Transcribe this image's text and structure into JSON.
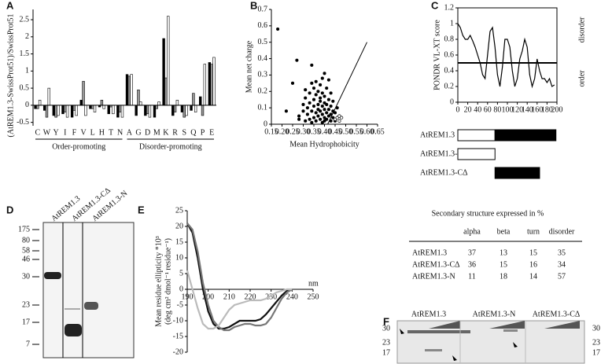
{
  "panel_labels": [
    "A",
    "B",
    "C",
    "D",
    "E",
    "F"
  ],
  "chart_data": [
    {
      "type": "bar",
      "ylabel": "(AtREM1.3-SwissProt51)/SwissProt51",
      "categories": [
        "C",
        "W",
        "Y",
        "I",
        "F",
        "V",
        "L",
        "H",
        "T",
        "N",
        "A",
        "G",
        "D",
        "M",
        "K",
        "R",
        "S",
        "Q",
        "P",
        "E"
      ],
      "group_labels": [
        "Order-promoting",
        "Disorder-promoting"
      ],
      "series": [
        {
          "color": "#000000",
          "values": [
            -0.1,
            -0.15,
            -0.3,
            -0.25,
            -0.35,
            0.15,
            -0.1,
            -0.05,
            -0.25,
            -0.35,
            0.9,
            -0.3,
            -0.3,
            -0.35,
            1.95,
            -0.3,
            -0.2,
            -0.15,
            0.25,
            1.25
          ]
        },
        {
          "color": "#999999",
          "values": [
            -0.1,
            -0.35,
            -0.35,
            -0.2,
            -0.15,
            0.7,
            -0.1,
            0.15,
            -0.05,
            -0.2,
            0.85,
            0.45,
            -0.25,
            -0.1,
            0.8,
            -0.2,
            -0.35,
            0.35,
            -0.3,
            1.2
          ]
        },
        {
          "color": "#ffffff",
          "values": [
            0.15,
            0.5,
            -0.3,
            -0.35,
            -0.3,
            -0.3,
            -0.2,
            -0.1,
            -0.25,
            -0.35,
            0.9,
            0.1,
            -0.35,
            0.1,
            2.6,
            0.15,
            -0.3,
            -0.2,
            1.2,
            1.4
          ]
        }
      ],
      "ylim": [
        -0.6,
        2.8
      ],
      "yticks": [
        -0.5,
        0,
        0.5,
        1,
        1.5,
        2,
        2.5
      ]
    },
    {
      "type": "scatter",
      "xlabel": "Mean Hydrophobicity",
      "ylabel": "Mean net charge",
      "series": [
        {
          "color": "#000000",
          "marker": "filled",
          "x": [
            0.18,
            0.22,
            0.25,
            0.27,
            0.28,
            0.28,
            0.3,
            0.3,
            0.31,
            0.31,
            0.32,
            0.32,
            0.33,
            0.33,
            0.33,
            0.34,
            0.34,
            0.34,
            0.35,
            0.35,
            0.35,
            0.35,
            0.36,
            0.36,
            0.36,
            0.36,
            0.37,
            0.37,
            0.37,
            0.37,
            0.38,
            0.38,
            0.38,
            0.38,
            0.38,
            0.39,
            0.39,
            0.39,
            0.39,
            0.39,
            0.4,
            0.4,
            0.4,
            0.4,
            0.4,
            0.4,
            0.41,
            0.41,
            0.41,
            0.41,
            0.42,
            0.42,
            0.42,
            0.42,
            0.43,
            0.43,
            0.43,
            0.43,
            0.44,
            0.44,
            0.44,
            0.45,
            0.45,
            0.46,
            0.34,
            0.31
          ],
          "y": [
            0.58,
            0.08,
            0.25,
            0.39,
            0.05,
            0.03,
            0.08,
            0.12,
            0.02,
            0.16,
            0.06,
            0.1,
            0.13,
            0.03,
            0.19,
            0.36,
            0.08,
            0.01,
            0.11,
            0.15,
            0.04,
            0.22,
            0.07,
            0.02,
            0.18,
            0.26,
            0.12,
            0.05,
            0.09,
            0.2,
            0.03,
            0.14,
            0.08,
            0.24,
            0.16,
            0.01,
            0.06,
            0.11,
            0.19,
            0.28,
            0.04,
            0.09,
            0.13,
            0.17,
            0.31,
            0.02,
            0.07,
            0.12,
            0.22,
            0.03,
            0.05,
            0.09,
            0.15,
            0.27,
            0.02,
            0.06,
            0.11,
            0.19,
            0.04,
            0.08,
            0.14,
            0.02,
            0.07,
            0.1,
            0.25,
            0.21
          ]
        },
        {
          "color": "#000000",
          "marker": "open",
          "x": [
            0.45,
            0.46,
            0.47,
            0.48,
            0.47
          ],
          "y": [
            0.03,
            0.04,
            0.05,
            0.04,
            0.02
          ]
        }
      ],
      "line": {
        "x": [
          0.415,
          0.6
        ],
        "y": [
          0,
          0.5
        ]
      },
      "xlim": [
        0.15,
        0.65
      ],
      "ylim": [
        0,
        0.7
      ],
      "xticks": [
        0.15,
        {
          "value": 0.2,
          "label": "0.20"
        },
        0.25,
        {
          "value": 0.3,
          "label": "0.30"
        },
        0.35,
        {
          "value": 0.4,
          "label": "0.40"
        },
        0.45,
        {
          "value": 0.5,
          "label": "0.50"
        },
        0.55,
        {
          "value": 0.6,
          "label": "0.60"
        },
        0.65
      ],
      "yticks": [
        0,
        0.1,
        0.2,
        0.3,
        0.4,
        0.5,
        0.6,
        0.7
      ]
    },
    {
      "type": "line",
      "ylabel": "PONDR VL-XT score",
      "side_labels": [
        "disorder",
        "order"
      ],
      "x": [
        0,
        5,
        10,
        15,
        20,
        25,
        30,
        35,
        40,
        45,
        50,
        55,
        60,
        65,
        70,
        75,
        80,
        85,
        90,
        95,
        100,
        105,
        110,
        115,
        120,
        125,
        130,
        135,
        140,
        145,
        150,
        155,
        160,
        165,
        170,
        175,
        180,
        185,
        190,
        195
      ],
      "series": [
        {
          "color": "#000000",
          "values": [
            1.0,
            0.95,
            0.85,
            0.8,
            0.8,
            0.85,
            0.78,
            0.7,
            0.6,
            0.5,
            0.35,
            0.3,
            0.6,
            0.9,
            0.95,
            0.7,
            0.35,
            0.2,
            0.45,
            0.8,
            0.8,
            0.7,
            0.4,
            0.2,
            0.3,
            0.55,
            0.65,
            0.8,
            0.7,
            0.35,
            0.2,
            0.3,
            0.55,
            0.4,
            0.3,
            0.3,
            0.25,
            0.3,
            0.2,
            0.22
          ]
        }
      ],
      "threshold": 0.5,
      "constructs": [
        {
          "name": "AtREM1.3",
          "segments": [
            {
              "start": 0,
              "end": 75,
              "color": "#ffffff"
            },
            {
              "start": 75,
              "end": 198,
              "color": "#000000"
            }
          ]
        },
        {
          "name": "AtREM1.3-N",
          "segments": [
            {
              "start": 0,
              "end": 75,
              "color": "#ffffff"
            }
          ]
        },
        {
          "name": "AtREM1.3-CΔ",
          "segments": [
            {
              "start": 75,
              "end": 165,
              "color": "#000000"
            }
          ]
        }
      ],
      "xlim": [
        0,
        200
      ],
      "ylim": [
        0,
        1.2
      ],
      "xticks": [
        0,
        20,
        40,
        60,
        80,
        100,
        120,
        140,
        160,
        180,
        200
      ],
      "yticks": [
        0,
        0.2,
        0.4,
        0.6,
        0.8,
        1,
        1.2
      ]
    },
    {
      "type": "line",
      "ylabel": "Mean residue ellipticity *10³",
      "ylabel2": "(deg cm² dmol⁻¹ residue⁻¹)",
      "xunit": "nm",
      "x": [
        190,
        192.5,
        195,
        197.5,
        200,
        202.5,
        205,
        207.5,
        210,
        212.5,
        215,
        217.5,
        220,
        222.5,
        225,
        227.5,
        230,
        232.5,
        235,
        237.5,
        240
      ],
      "series": [
        {
          "color": "#111111",
          "values": [
            21,
            18,
            10,
            0,
            -7,
            -11,
            -12.5,
            -12.5,
            -12,
            -11,
            -10,
            -10,
            -10,
            -10,
            -9.5,
            -8,
            -6,
            -4,
            -2,
            -0.5,
            0
          ]
        },
        {
          "color": "#777777",
          "values": [
            21,
            19,
            12,
            2,
            -5,
            -10,
            -12,
            -13,
            -13,
            -12,
            -11.5,
            -11,
            -11,
            -11.5,
            -11.5,
            -11,
            -9,
            -6,
            -3,
            -1,
            0
          ]
        },
        {
          "color": "#bbbbbb",
          "values": [
            6,
            0,
            -6,
            -11,
            -12.5,
            -12.5,
            -11.5,
            -9,
            -6.5,
            -5,
            -4.5,
            -4,
            -3.5,
            -3.5,
            -3.5,
            -3,
            -2,
            -1,
            -0.5,
            0,
            0
          ]
        }
      ],
      "xlim": [
        190,
        250
      ],
      "ylim": [
        -20,
        25
      ],
      "xticks": [
        190,
        200,
        210,
        220,
        230,
        240,
        250
      ],
      "yticks": [
        -20,
        -15,
        -10,
        -5,
        0,
        5,
        10,
        15,
        20,
        25
      ]
    }
  ],
  "table": {
    "title": "Secondary structure expressed in %",
    "header": [
      "alpha",
      "beta",
      "turn",
      "disorder"
    ],
    "rows": [
      [
        "AtREM1.3",
        37,
        13,
        15,
        35
      ],
      [
        "AtREM1.3-CΔ",
        36,
        15,
        16,
        34
      ],
      [
        "AtREM1.3-N",
        11,
        18,
        14,
        57
      ]
    ]
  },
  "gel_d": {
    "lanes": [
      "AtREM1.3",
      "AtREM1.3-CΔ",
      "AtREM1.3-N"
    ],
    "markers": [
      175,
      80,
      58,
      46,
      30,
      23,
      17,
      7
    ]
  },
  "gel_f": {
    "groups": [
      "AtREM1.3",
      "AtREM1.3-N",
      "AtREM1.3-CΔ"
    ],
    "markers": [
      30,
      23,
      17
    ]
  }
}
